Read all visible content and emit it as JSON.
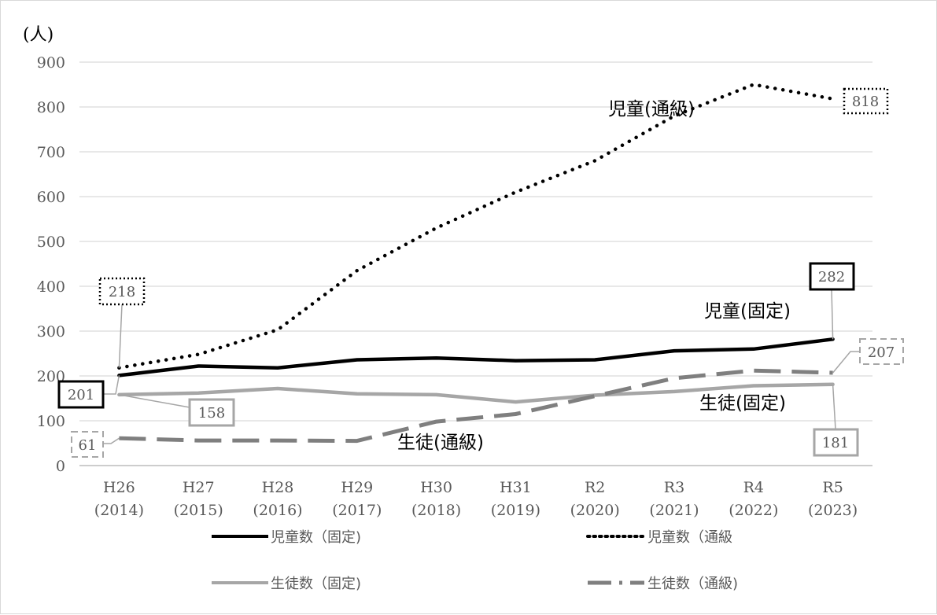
{
  "chart_data": {
    "type": "line",
    "unit_label": "(人)",
    "ylim": [
      0,
      900
    ],
    "y_ticks": [
      "0",
      "100",
      "200",
      "300",
      "400",
      "500",
      "600",
      "700",
      "800",
      "900"
    ],
    "categories": [
      {
        "era": "H26",
        "year": "(2014)"
      },
      {
        "era": "H27",
        "year": "(2015)"
      },
      {
        "era": "H28",
        "year": "(2016)"
      },
      {
        "era": "H29",
        "year": "(2017)"
      },
      {
        "era": "H30",
        "year": "(2018)"
      },
      {
        "era": "H31",
        "year": "(2019)"
      },
      {
        "era": "R2",
        "year": "(2020)"
      },
      {
        "era": "R3",
        "year": "(2021)"
      },
      {
        "era": "R4",
        "year": "(2022)"
      },
      {
        "era": "R5",
        "year": "(2023)"
      }
    ],
    "grid": true,
    "legend_position": "bottom",
    "series": [
      {
        "name": "児童数（固定)",
        "color": "#000000",
        "style": "solid",
        "values": [
          201,
          222,
          218,
          236,
          240,
          234,
          236,
          256,
          260,
          282
        ]
      },
      {
        "name": "児童数（通級",
        "color": "#000000",
        "style": "dotted",
        "values": [
          218,
          248,
          303,
          435,
          530,
          610,
          680,
          780,
          850,
          818
        ]
      },
      {
        "name": "生徒数（固定)",
        "color": "#a6a6a6",
        "style": "solid",
        "values": [
          158,
          162,
          172,
          160,
          158,
          142,
          157,
          165,
          178,
          181
        ]
      },
      {
        "name": "生徒数（通級)",
        "color": "#7f7f7f",
        "style": "dashed",
        "values": [
          61,
          56,
          56,
          55,
          98,
          115,
          155,
          195,
          212,
          207
        ]
      }
    ],
    "annotations": [
      {
        "text": "児童(通級)"
      },
      {
        "text": "児童(固定)"
      },
      {
        "text": "生徒(固定)"
      },
      {
        "text": "生徒(通級)"
      }
    ],
    "data_labels": [
      "218",
      "201",
      "158",
      "61",
      "282",
      "818",
      "207",
      "181"
    ]
  }
}
